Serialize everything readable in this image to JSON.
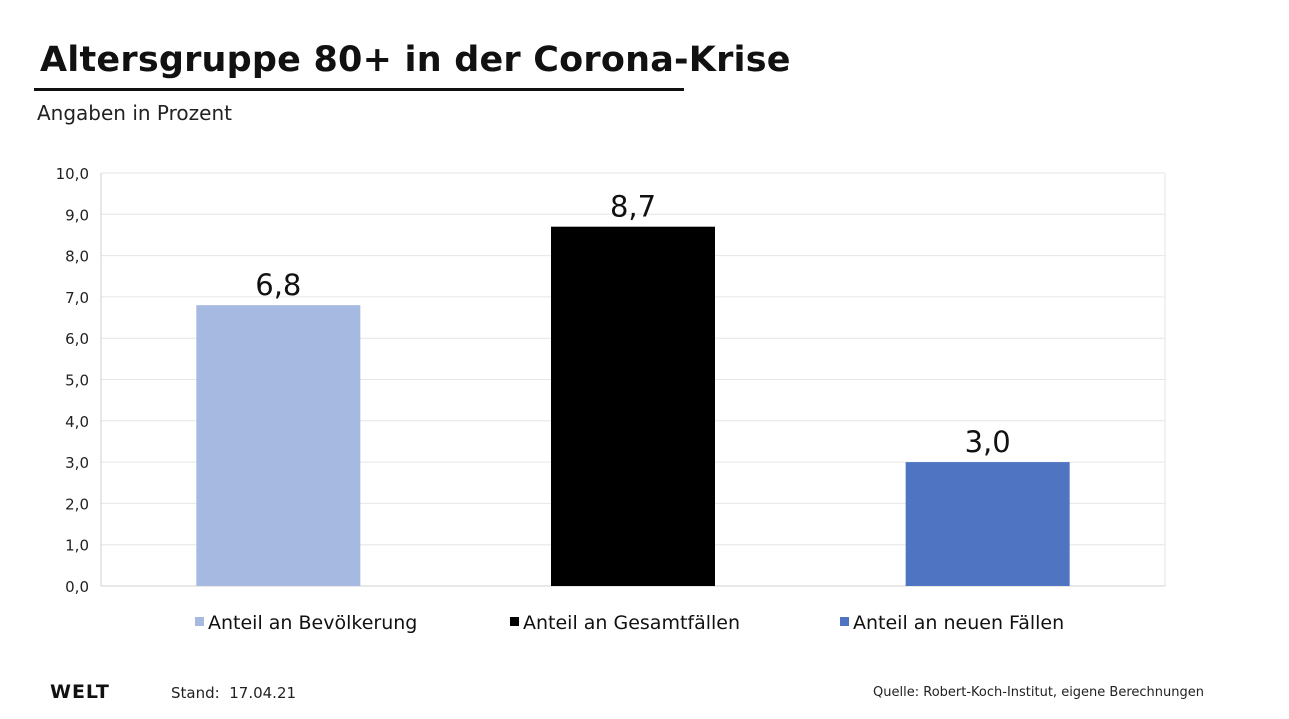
{
  "header": {
    "title": "Altersgruppe 80+ in der Corona-Krise",
    "subtitle": "Angaben in Prozent"
  },
  "footer": {
    "logo": "WELT",
    "stand_label": "Stand:",
    "stand_date": "17.04.21",
    "source": "Quelle: Robert-Koch-Institut, eigene Berechnungen"
  },
  "colors": {
    "bevoelkerung": "#a6b9e0",
    "gesamtfaelle": "#000000",
    "neue_faelle": "#4f74c1",
    "grid": "#e6e6e6",
    "axis": "#d0d0d0"
  },
  "chart_data": {
    "type": "bar",
    "title": "Altersgruppe 80+ in der Corona-Krise",
    "subtitle": "Angaben in Prozent",
    "ylim": [
      0,
      10
    ],
    "yticks": [
      "0,0",
      "1,0",
      "2,0",
      "3,0",
      "4,0",
      "5,0",
      "6,0",
      "7,0",
      "8,0",
      "9,0",
      "10,0"
    ],
    "grid": true,
    "legend_position": "bottom",
    "series": [
      {
        "name": "Anteil an Bevölkerung",
        "value": 6.8,
        "label": "6,8",
        "color_key": "bevoelkerung"
      },
      {
        "name": "Anteil an Gesamtfällen",
        "value": 8.7,
        "label": "8,7",
        "color_key": "gesamtfaelle"
      },
      {
        "name": "Anteil an neuen Fällen",
        "value": 3.0,
        "label": "3,0",
        "color_key": "neue_faelle"
      }
    ]
  }
}
